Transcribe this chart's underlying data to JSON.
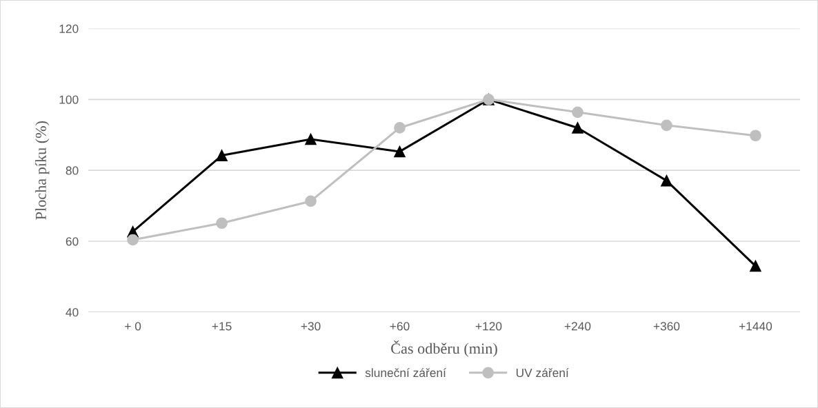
{
  "chart_data": {
    "type": "line",
    "xlabel": "Čas odběru (min)",
    "ylabel": "Plocha píku (%)",
    "categories": [
      "+ 0",
      "+15",
      "+30",
      "+60",
      "+120",
      "+240",
      "+360",
      "+1440"
    ],
    "series": [
      {
        "name": "sluneční záření",
        "color": "#000000",
        "marker": "triangle",
        "values": [
          62.7,
          84.2,
          88.8,
          85.3,
          100,
          92.0,
          77.1,
          53.0
        ]
      },
      {
        "name": "UV záření",
        "color": "#bfbfbf",
        "marker": "circle",
        "values": [
          60.4,
          65.1,
          71.3,
          92.0,
          100,
          96.4,
          92.7,
          89.8
        ]
      }
    ],
    "ylim": [
      40,
      120
    ],
    "yticks": [
      40,
      60,
      80,
      100,
      120
    ],
    "grid": "y",
    "legend": "bottom",
    "line_style": "solid"
  }
}
